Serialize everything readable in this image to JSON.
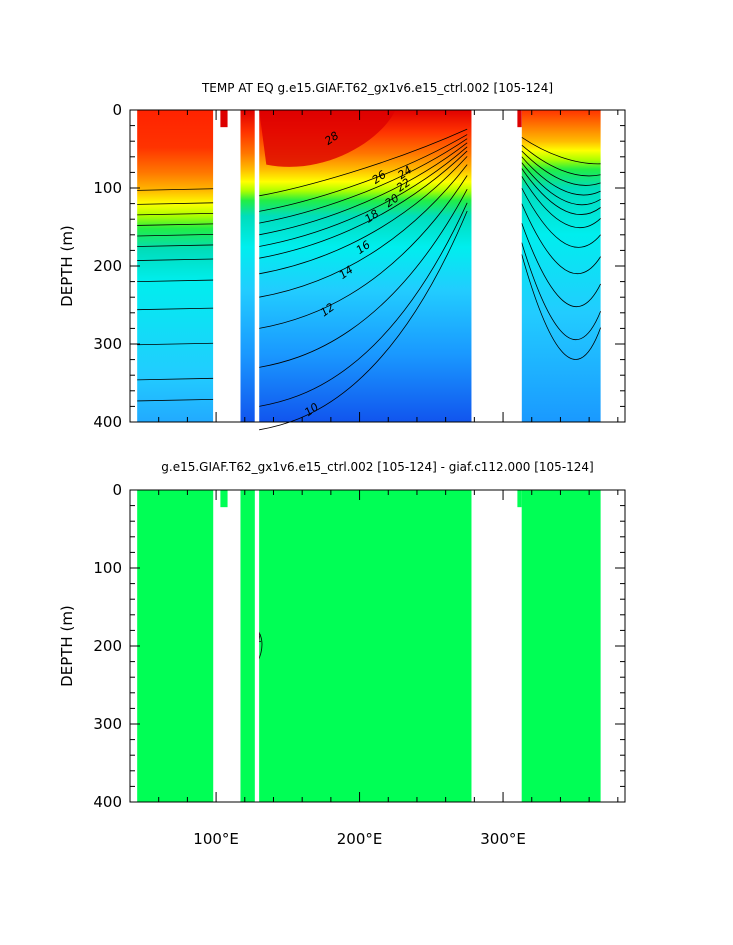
{
  "chart_data": [
    {
      "type": "heatmap",
      "title": "TEMP AT EQ  g.e15.GIAF.T62_gx1v6.e15_ctrl.002  [105-124]",
      "xlabel": "",
      "ylabel": "DEPTH (m)",
      "xlim": [
        40,
        385
      ],
      "ylim": [
        400,
        0
      ],
      "xticks": [
        "100°E",
        "200°E",
        "300°E"
      ],
      "xtick_values": [
        100,
        200,
        300
      ],
      "yticks": [
        "0",
        "100",
        "200",
        "300",
        "400"
      ],
      "ytick_values": [
        0,
        100,
        200,
        300,
        400
      ],
      "data_range_x": [
        45,
        368
      ],
      "land_gaps": [
        [
          98,
          117
        ],
        [
          127,
          130
        ],
        [
          278,
          313
        ]
      ],
      "contour_labels": [
        {
          "text": "28",
          "x": 182,
          "y": 40
        },
        {
          "text": "26",
          "x": 215,
          "y": 90
        },
        {
          "text": "24",
          "x": 233,
          "y": 84
        },
        {
          "text": "22",
          "x": 232,
          "y": 100
        },
        {
          "text": "20",
          "x": 224,
          "y": 120
        },
        {
          "text": "18",
          "x": 210,
          "y": 140
        },
        {
          "text": "16",
          "x": 204,
          "y": 180
        },
        {
          "text": "14",
          "x": 192,
          "y": 212
        },
        {
          "text": "12",
          "x": 179,
          "y": 260
        },
        {
          "text": "10",
          "x": 168,
          "y": 388
        }
      ]
    },
    {
      "type": "heatmap",
      "title": "g.e15.GIAF.T62_gx1v6.e15_ctrl.002 [105-124] - giaf.c112.000 [105-124]",
      "xlabel": "",
      "ylabel": "DEPTH (m)",
      "xlim": [
        40,
        385
      ],
      "ylim": [
        400,
        0
      ],
      "xticks": [
        "100°E",
        "200°E",
        "300°E"
      ],
      "xtick_values": [
        100,
        200,
        300
      ],
      "yticks": [
        "0",
        "100",
        "200",
        "300",
        "400"
      ],
      "ytick_values": [
        0,
        100,
        200,
        300,
        400
      ],
      "data_range_x": [
        45,
        368
      ],
      "land_gaps": [
        [
          98,
          117
        ],
        [
          127,
          130
        ],
        [
          278,
          313
        ]
      ],
      "fill_color": "#00ff55",
      "contour_labels": [
        {
          "text": "1",
          "x": 130,
          "y": 195
        }
      ]
    }
  ]
}
